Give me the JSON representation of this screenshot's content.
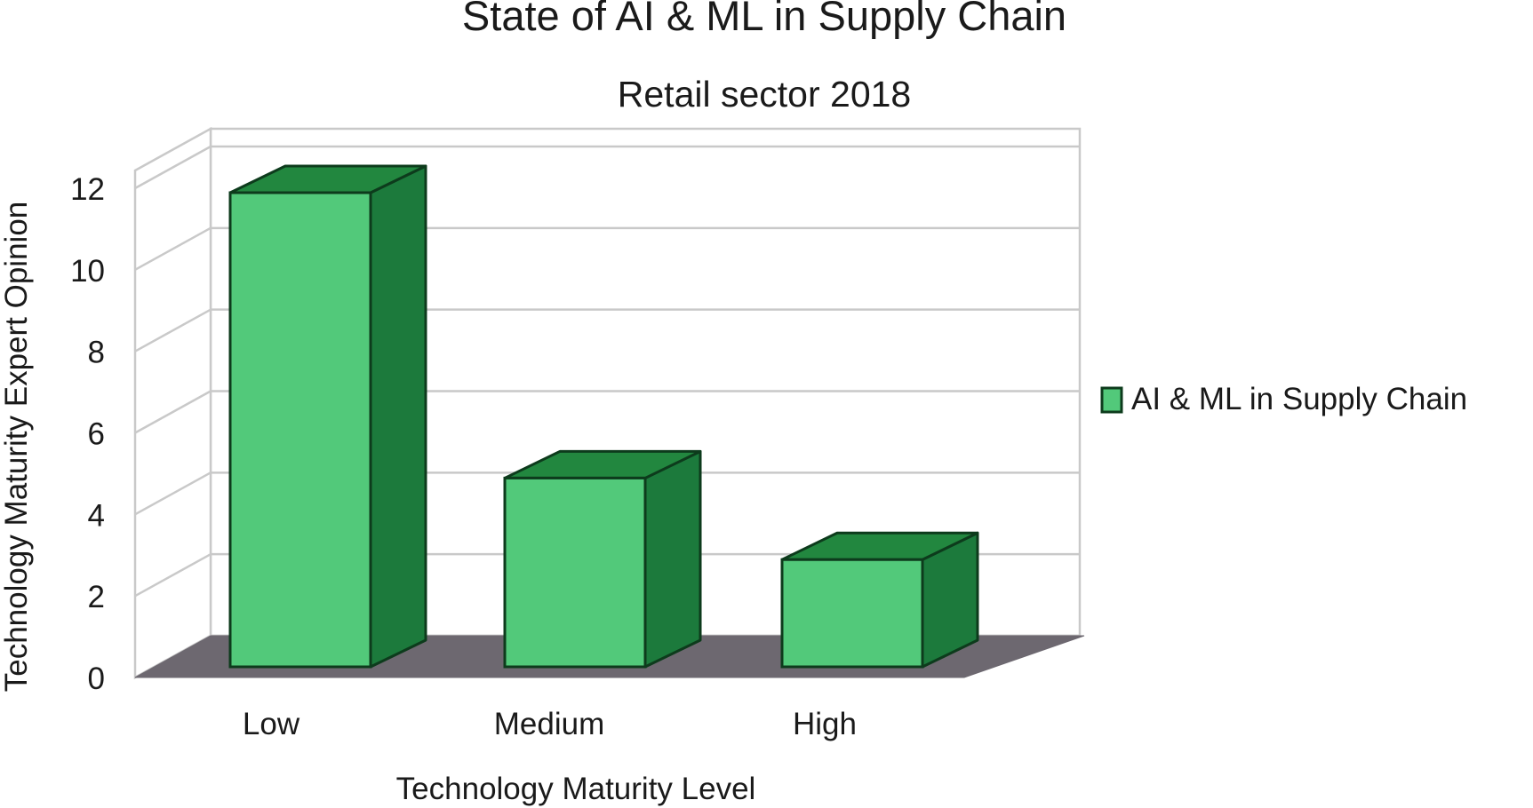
{
  "chart_data": {
    "type": "bar",
    "title": "State of AI & ML in Supply Chain",
    "subtitle": "Retail sector 2018",
    "xlabel": "Technology Maturity Level",
    "ylabel": "Technology Maturity Expert Opinion",
    "categories": [
      "Low",
      "Medium",
      "High"
    ],
    "series": [
      {
        "name": "AI & ML in Supply Chain",
        "values": [
          12,
          5,
          3
        ]
      }
    ],
    "ylim": [
      0,
      12
    ],
    "yticks": [
      0,
      2,
      4,
      6,
      8,
      10,
      12
    ],
    "grid": true,
    "three_d": true,
    "legend_position": "right",
    "colors": {
      "bar_front": "#52c97a",
      "bar_side": "#1c7a3c",
      "bar_top": "#22873f",
      "bar_outline": "#0d3b1c",
      "floor": "#6d6870",
      "grid": "#c9c9c9",
      "text": "#1a1a1a"
    }
  }
}
